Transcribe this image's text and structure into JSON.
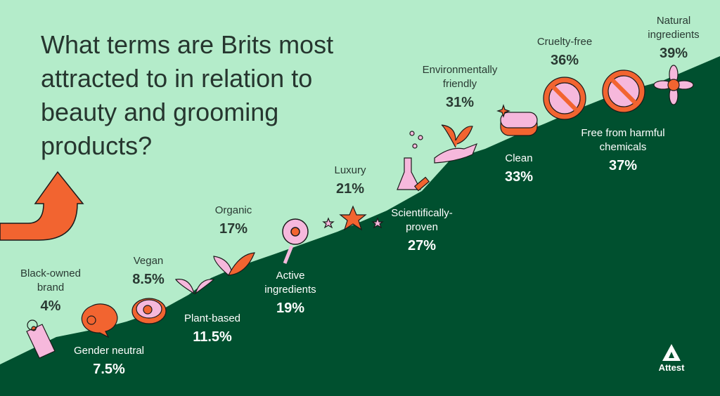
{
  "title": "What terms are Brits most attracted to in relation to beauty and grooming products?",
  "brand": "Attest",
  "colors": {
    "background": "#b4ecca",
    "hill": "#00502f",
    "accent": "#f26430",
    "pink": "#f6b8dc",
    "text": "#26362f"
  },
  "chart_data": {
    "type": "bar",
    "title": "What terms are Brits most attracted to in relation to beauty and grooming products?",
    "unit": "%",
    "items": [
      {
        "label": "Black-owned brand",
        "value": "4%",
        "num": 4
      },
      {
        "label": "Gender neutral",
        "value": "7.5%",
        "num": 7.5
      },
      {
        "label": "Vegan",
        "value": "8.5%",
        "num": 8.5
      },
      {
        "label": "Plant-based",
        "value": "11.5%",
        "num": 11.5
      },
      {
        "label": "Organic",
        "value": "17%",
        "num": 17
      },
      {
        "label": "Active ingredients",
        "value": "19%",
        "num": 19
      },
      {
        "label": "Luxury",
        "value": "21%",
        "num": 21
      },
      {
        "label": "Scientifically-proven",
        "value": "27%",
        "num": 27
      },
      {
        "label": "Environmentally friendly",
        "value": "31%",
        "num": 31
      },
      {
        "label": "Clean",
        "value": "33%",
        "num": 33
      },
      {
        "label": "Cruelty-free",
        "value": "36%",
        "num": 36
      },
      {
        "label": "Free from harmful chemicals",
        "value": "37%",
        "num": 37
      },
      {
        "label": "Natural ingredients",
        "value": "39%",
        "num": 39
      }
    ]
  }
}
